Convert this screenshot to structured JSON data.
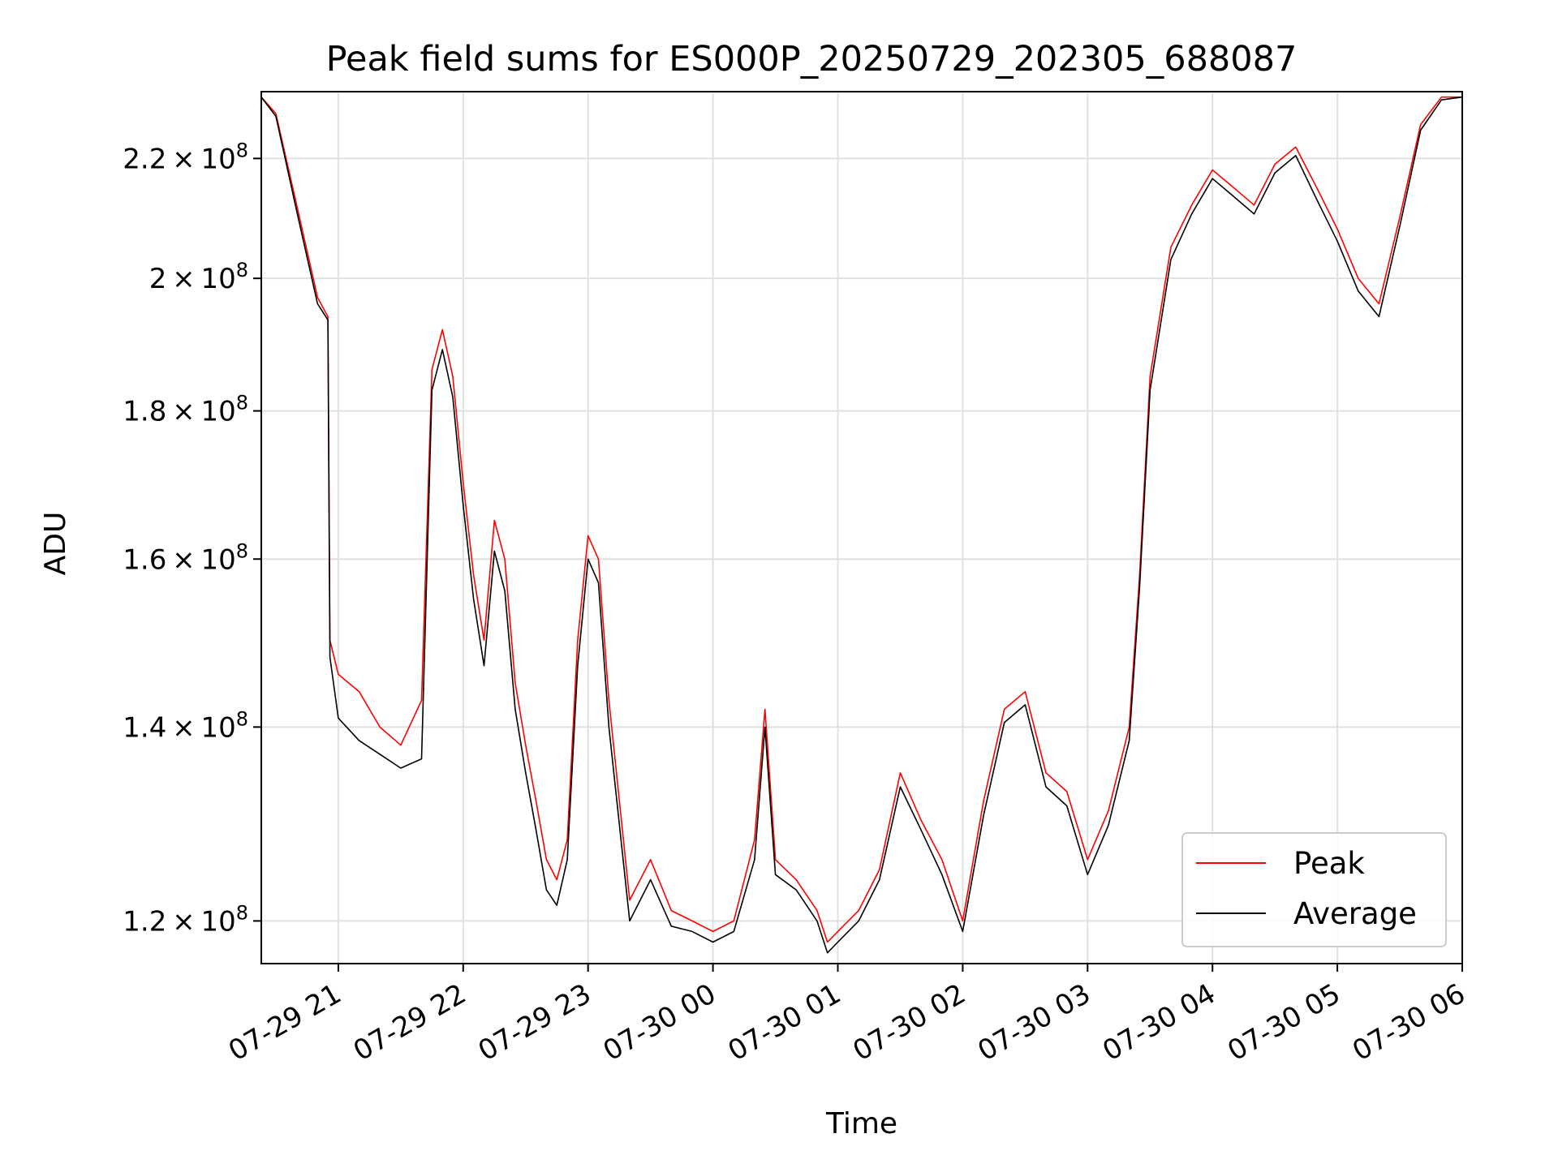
{
  "chart_data": {
    "type": "line",
    "title": "Peak field sums for ES000P_20250729_202305_688087",
    "xlabel": "Time",
    "ylabel": "ADU",
    "yscale": "log",
    "xlim": [
      "2025-07-29 20:23",
      "2025-07-30 06:00"
    ],
    "ylim": [
      116000000,
      232000000
    ],
    "grid": true,
    "legend_position": "lower-right",
    "x_ticks": [
      "07-29 21",
      "07-29 22",
      "07-29 23",
      "07-30 00",
      "07-30 01",
      "07-30 02",
      "07-30 03",
      "07-30 04",
      "07-30 05",
      "07-30 06"
    ],
    "y_ticks": [
      {
        "value": 120000000,
        "mantissa": "1.2",
        "exp": "8"
      },
      {
        "value": 140000000,
        "mantissa": "1.4",
        "exp": "8"
      },
      {
        "value": 160000000,
        "mantissa": "1.6",
        "exp": "8"
      },
      {
        "value": 180000000,
        "mantissa": "1.8",
        "exp": "8"
      },
      {
        "value": 200000000,
        "mantissa": "2",
        "exp": "8"
      },
      {
        "value": 220000000,
        "mantissa": "2.2",
        "exp": "8"
      }
    ],
    "series": [
      {
        "name": "Peak",
        "color": "#ff0000"
      },
      {
        "name": "Average",
        "color": "#000000"
      }
    ],
    "x": [
      "2025-07-29 20:23",
      "2025-07-29 20:30",
      "2025-07-29 20:40",
      "2025-07-29 20:50",
      "2025-07-29 20:55",
      "2025-07-29 20:56",
      "2025-07-29 21:00",
      "2025-07-29 21:10",
      "2025-07-29 21:20",
      "2025-07-29 21:30",
      "2025-07-29 21:40",
      "2025-07-29 21:45",
      "2025-07-29 21:50",
      "2025-07-29 21:55",
      "2025-07-29 22:00",
      "2025-07-29 22:05",
      "2025-07-29 22:10",
      "2025-07-29 22:15",
      "2025-07-29 22:20",
      "2025-07-29 22:25",
      "2025-07-29 22:30",
      "2025-07-29 22:35",
      "2025-07-29 22:40",
      "2025-07-29 22:45",
      "2025-07-29 22:50",
      "2025-07-29 22:55",
      "2025-07-29 23:00",
      "2025-07-29 23:05",
      "2025-07-29 23:10",
      "2025-07-29 23:20",
      "2025-07-29 23:30",
      "2025-07-29 23:40",
      "2025-07-29 23:50",
      "2025-07-30 00:00",
      "2025-07-30 00:10",
      "2025-07-30 00:20",
      "2025-07-30 00:25",
      "2025-07-30 00:30",
      "2025-07-30 00:40",
      "2025-07-30 00:50",
      "2025-07-30 00:55",
      "2025-07-30 01:00",
      "2025-07-30 01:10",
      "2025-07-30 01:20",
      "2025-07-30 01:30",
      "2025-07-30 01:40",
      "2025-07-30 01:50",
      "2025-07-30 02:00",
      "2025-07-30 02:10",
      "2025-07-30 02:20",
      "2025-07-30 02:30",
      "2025-07-30 02:40",
      "2025-07-30 02:50",
      "2025-07-30 03:00",
      "2025-07-30 03:10",
      "2025-07-30 03:20",
      "2025-07-30 03:25",
      "2025-07-30 03:30",
      "2025-07-30 03:40",
      "2025-07-30 03:50",
      "2025-07-30 04:00",
      "2025-07-30 04:10",
      "2025-07-30 04:20",
      "2025-07-30 04:30",
      "2025-07-30 04:40",
      "2025-07-30 04:50",
      "2025-07-30 05:00",
      "2025-07-30 05:10",
      "2025-07-30 05:20",
      "2025-07-30 05:30",
      "2025-07-30 05:40",
      "2025-07-30 05:50",
      "2025-07-30 06:00"
    ],
    "peak": [
      231000000,
      228000000,
      212000000,
      197000000,
      194000000,
      150000000,
      146000000,
      144000000,
      140000000,
      138000000,
      143000000,
      186000000,
      192000000,
      185000000,
      170000000,
      158000000,
      150000000,
      165000000,
      160000000,
      145000000,
      138000000,
      132000000,
      126000000,
      124000000,
      128000000,
      150000000,
      163000000,
      160000000,
      143000000,
      122000000,
      126000000,
      121000000,
      120000000,
      119000000,
      120000000,
      128000000,
      142000000,
      126000000,
      124000000,
      121000000,
      118000000,
      119000000,
      121000000,
      125000000,
      135000000,
      130000000,
      126000000,
      120000000,
      132000000,
      142000000,
      144000000,
      135000000,
      133000000,
      126000000,
      131000000,
      140000000,
      158000000,
      185000000,
      205000000,
      212000000,
      218000000,
      215000000,
      212000000,
      219000000,
      222000000,
      215000000,
      208000000,
      200000000,
      196000000,
      210000000,
      226000000,
      231000000,
      231000000
    ],
    "average": [
      231000000,
      227500000,
      211000000,
      196000000,
      193500000,
      148000000,
      141000000,
      138500000,
      137000000,
      135500000,
      136500000,
      183000000,
      189000000,
      182000000,
      167000000,
      155000000,
      147000000,
      161000000,
      156000000,
      142000000,
      135000000,
      129000000,
      123000000,
      121500000,
      126000000,
      147000000,
      160000000,
      157000000,
      140000000,
      120000000,
      124000000,
      119500000,
      119000000,
      118000000,
      119000000,
      126000000,
      140000000,
      124500000,
      123000000,
      120000000,
      117000000,
      118000000,
      120000000,
      124000000,
      133500000,
      129000000,
      124500000,
      119000000,
      130500000,
      140500000,
      142500000,
      133500000,
      131500000,
      124500000,
      129500000,
      138500000,
      156500000,
      183000000,
      203000000,
      210500000,
      216500000,
      213500000,
      210500000,
      217500000,
      220500000,
      213000000,
      206000000,
      198000000,
      194000000,
      208500000,
      225000000,
      230500000,
      231000000
    ]
  }
}
